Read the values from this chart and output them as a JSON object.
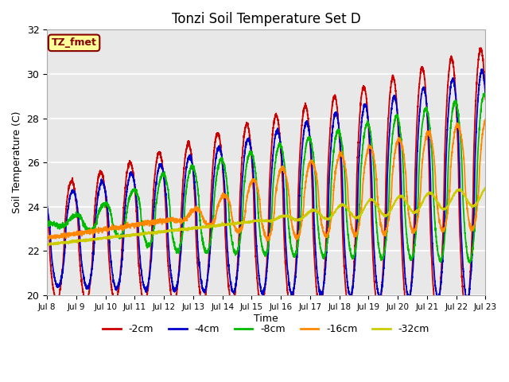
{
  "title": "Tonzi Soil Temperature Set D",
  "xlabel": "Time",
  "ylabel": "Soil Temperature (C)",
  "ylim": [
    20,
    32
  ],
  "xlim": [
    0,
    360
  ],
  "x_tick_labels": [
    "Jul 8",
    "Jul 9",
    "Jul 10",
    "Jul 11",
    "Jul 12",
    "Jul 13",
    "Jul 14",
    "Jul 15",
    "Jul 16",
    "Jul 17",
    "Jul 18",
    "Jul 19",
    "Jul 20",
    "Jul 21",
    "Jul 22",
    "Jul 23"
  ],
  "x_tick_positions": [
    0,
    24,
    48,
    72,
    96,
    120,
    144,
    168,
    192,
    216,
    240,
    264,
    288,
    312,
    336,
    360
  ],
  "ytick_positions": [
    20,
    22,
    24,
    26,
    28,
    30,
    32
  ],
  "legend_labels": [
    "-2cm",
    "-4cm",
    "-8cm",
    "-16cm",
    "-32cm"
  ],
  "line_colors": [
    "#cc0000",
    "#0000cc",
    "#00bb00",
    "#ff8800",
    "#cccc00"
  ],
  "line_widths": [
    1.3,
    1.3,
    1.3,
    1.3,
    1.3
  ],
  "annotation_text": "TZ_fmet",
  "annotation_bgcolor": "#ffff99",
  "annotation_edgecolor": "#880000",
  "bg_color": "#e8e8e8",
  "title_fontsize": 12,
  "axis_label_fontsize": 9
}
